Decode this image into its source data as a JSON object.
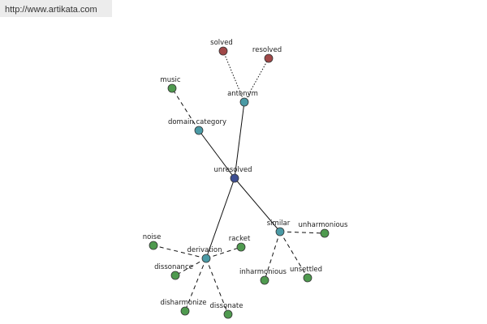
{
  "watermark": "http://www.artikata.com",
  "nodes": [
    {
      "label": "unresolved"
    },
    {
      "label": "antonym"
    },
    {
      "label": "solved"
    },
    {
      "label": "resolved"
    },
    {
      "label": "domain category"
    },
    {
      "label": "music"
    },
    {
      "label": "similar"
    },
    {
      "label": "unharmonious"
    },
    {
      "label": "inharmonious"
    },
    {
      "label": "unsettled"
    },
    {
      "label": "derivation"
    },
    {
      "label": "noise"
    },
    {
      "label": "racket"
    },
    {
      "label": "dissonance"
    },
    {
      "label": "disharmonize"
    },
    {
      "label": "dissonate"
    }
  ]
}
